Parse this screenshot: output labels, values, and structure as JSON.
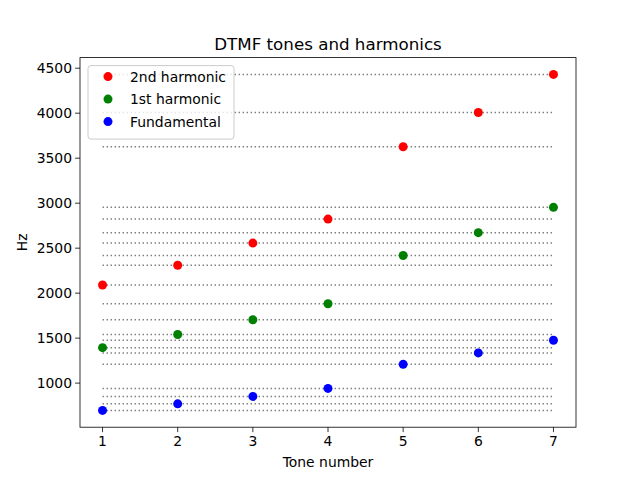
{
  "chart_data": {
    "type": "scatter",
    "title": "DTMF tones and harmonics",
    "x_label": "Tone number",
    "y_label": "Hz",
    "x": [
      1,
      2,
      3,
      4,
      5,
      6,
      7
    ],
    "series": [
      {
        "name": "2nd harmonic",
        "color": "red",
        "marker": "circle",
        "values": [
          2091,
          2310,
          2556,
          2823,
          3627,
          4008,
          4431
        ]
      },
      {
        "name": "1st harmonic",
        "color": "green",
        "marker": "circle",
        "values": [
          1394,
          1540,
          1704,
          1882,
          2418,
          2672,
          2954
        ]
      },
      {
        "name": "Fundamental",
        "color": "blue",
        "marker": "circle",
        "values": [
          697,
          770,
          852,
          941,
          1209,
          1336,
          1477
        ]
      }
    ],
    "xlim": [
      0.7,
      7.3
    ],
    "ylim": [
      510,
      4618
    ],
    "xticks": [
      1,
      2,
      3,
      4,
      5,
      6,
      7
    ],
    "yticks": [
      1000,
      1500,
      2000,
      2500,
      3000,
      3500,
      4000,
      4500
    ],
    "legend": "upper left",
    "grid": false
  }
}
